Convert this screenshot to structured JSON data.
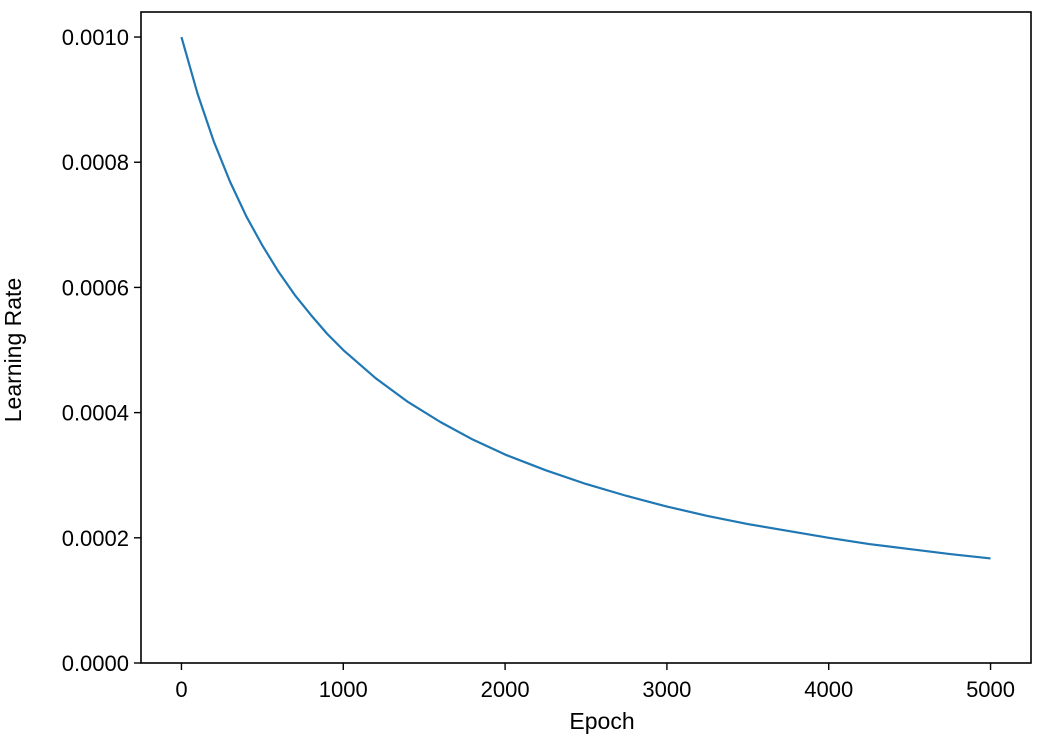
{
  "chart_data": {
    "type": "line",
    "title": "",
    "xlabel": "Epoch",
    "ylabel": "Learning Rate",
    "xlim": [
      -250,
      5250
    ],
    "ylim": [
      0,
      0.00104
    ],
    "xticks": [
      0,
      1000,
      2000,
      3000,
      4000,
      5000
    ],
    "xtick_labels": [
      "0",
      "1000",
      "2000",
      "3000",
      "4000",
      "5000"
    ],
    "yticks": [
      0,
      0.0002,
      0.0004,
      0.0006,
      0.0008,
      0.001
    ],
    "ytick_labels": [
      "0.0000",
      "0.0002",
      "0.0004",
      "0.0006",
      "0.0008",
      "0.0010"
    ],
    "grid": false,
    "legend": "none",
    "series": [
      {
        "color": "#1f77b4",
        "x": [
          0,
          100,
          200,
          300,
          400,
          500,
          600,
          700,
          800,
          900,
          1000,
          1200,
          1400,
          1600,
          1800,
          2000,
          2250,
          2500,
          2750,
          3000,
          3250,
          3500,
          3750,
          4000,
          4250,
          4500,
          4750,
          5000
        ],
        "y": [
          0.001,
          0.000909,
          0.000833,
          0.000769,
          0.000714,
          0.000667,
          0.000625,
          0.000588,
          0.000556,
          0.000526,
          0.0005,
          0.000455,
          0.000417,
          0.000385,
          0.000357,
          0.000333,
          0.000308,
          0.000286,
          0.000267,
          0.00025,
          0.000235,
          0.000222,
          0.000211,
          0.0002,
          0.00019,
          0.000182,
          0.000174,
          0.000167
        ]
      }
    ]
  }
}
